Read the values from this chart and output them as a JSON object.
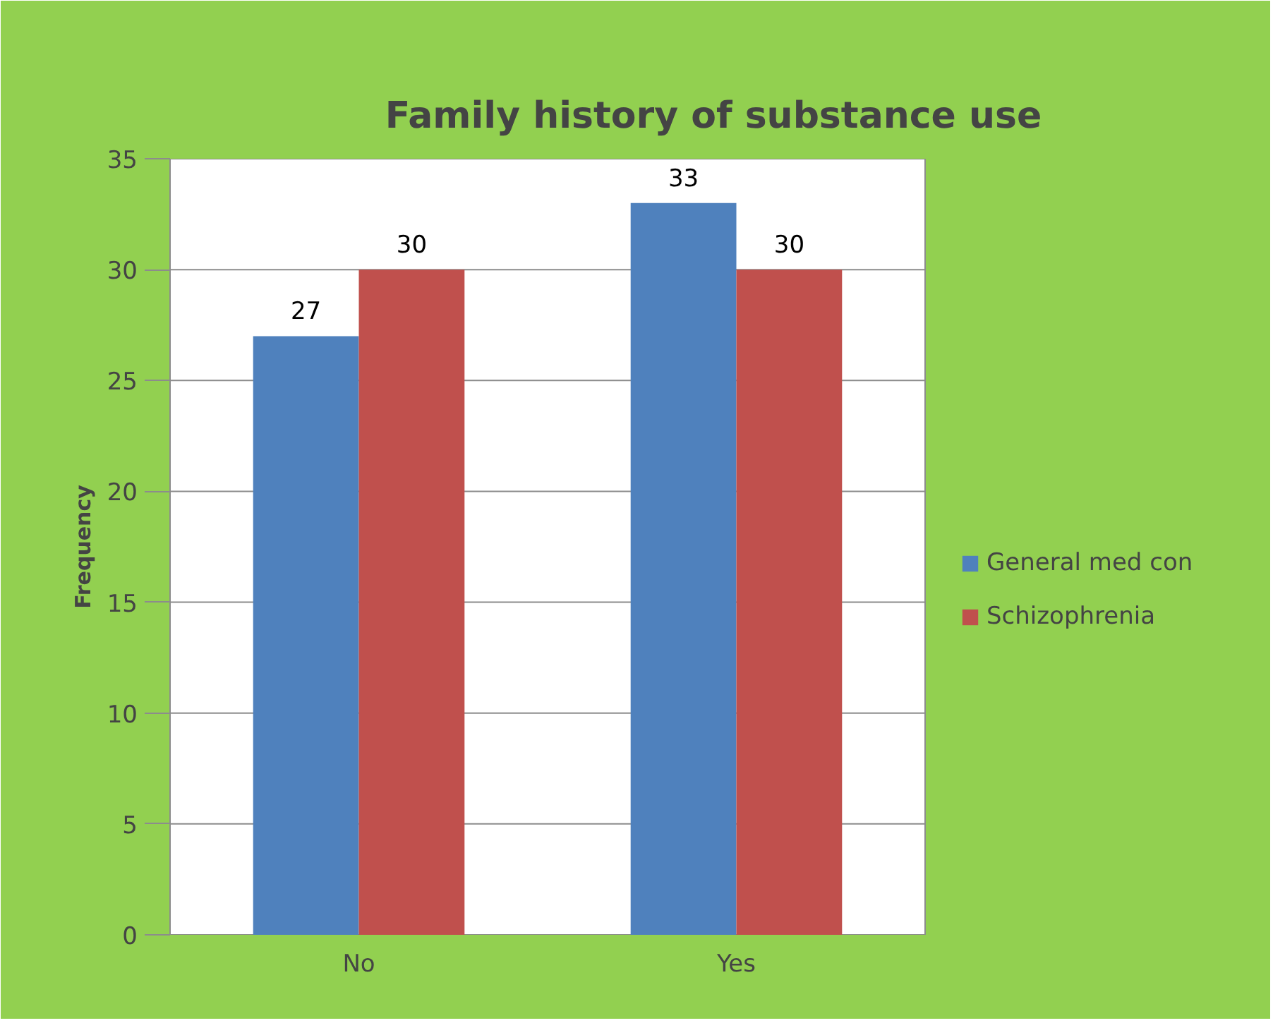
{
  "chart_data": {
    "type": "bar",
    "title": "Family history of substance use",
    "ylabel": "Frequency",
    "categories": [
      "No",
      "Yes"
    ],
    "series": [
      {
        "name": "General med con",
        "color": "#4f81bd",
        "values": [
          27,
          33
        ]
      },
      {
        "name": "Schizophrenia",
        "color": "#c0504d",
        "values": [
          30,
          30
        ]
      }
    ],
    "ylim": [
      0,
      35
    ],
    "yticks": [
      0,
      5,
      10,
      15,
      20,
      25,
      30,
      35
    ],
    "grid": "y",
    "legend": "right",
    "data_labels": true
  }
}
